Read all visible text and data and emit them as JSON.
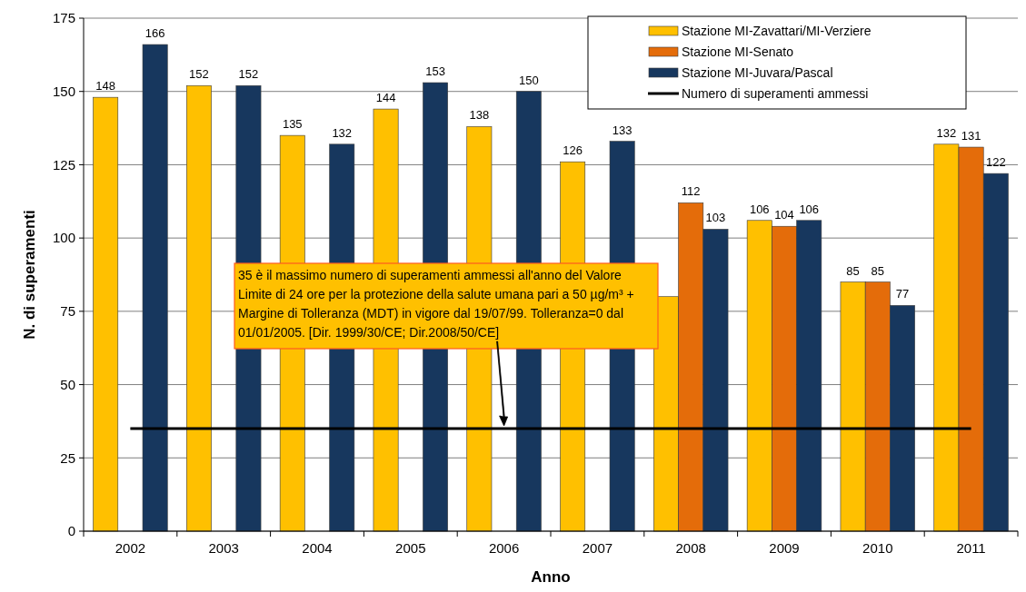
{
  "chart_data": {
    "type": "bar",
    "xlabel": "Anno",
    "ylabel": "N. di superamenti",
    "categories": [
      "2002",
      "2003",
      "2004",
      "2005",
      "2006",
      "2007",
      "2008",
      "2009",
      "2010",
      "2011"
    ],
    "series": [
      {
        "name": "Stazione MI-Zavattari/MI-Verziere",
        "color": "#ffc000",
        "values": [
          148,
          152,
          135,
          144,
          138,
          126,
          80,
          106,
          85,
          132
        ],
        "value_labels": [
          "148",
          "152",
          "135",
          "144",
          "138",
          "126",
          null,
          "106",
          "85",
          "132"
        ]
      },
      {
        "name": "Stazione MI-Senato",
        "color": "#e46c0a",
        "values": [
          null,
          null,
          null,
          null,
          null,
          null,
          112,
          104,
          85,
          131
        ],
        "value_labels": [
          null,
          null,
          null,
          null,
          null,
          null,
          "112",
          "104",
          "85",
          "131"
        ]
      },
      {
        "name": "Stazione MI-Juvara/Pascal",
        "color": "#17375e",
        "values": [
          166,
          152,
          132,
          153,
          150,
          133,
          103,
          106,
          77,
          122
        ],
        "value_labels": [
          "166",
          "152",
          "132",
          "153",
          "150",
          "133",
          "103",
          "106",
          "77",
          "122"
        ]
      },
      {
        "name": "Numero di superamenti  ammessi",
        "type": "line",
        "color": "#000000",
        "values": [
          35,
          35,
          35,
          35,
          35,
          35,
          35,
          35,
          35,
          35
        ]
      }
    ],
    "ylim": [
      0,
      175
    ],
    "yticks": [
      0,
      25,
      50,
      75,
      100,
      125,
      150,
      175
    ],
    "grid": "y",
    "legend": "top right",
    "annotations": [
      "35 è il massimo numero di superamenti ammessi all'anno del Valore Limite di 24 ore per la protezione della salute umana pari a 50 µg/m³ + Margine di Tolleranza (MDT) in vigore dal 19/07/99. Tolleranza=0 dal 01/01/2005. [Dir. 1999/30/CE; Dir.2008/50/CE]"
    ]
  }
}
